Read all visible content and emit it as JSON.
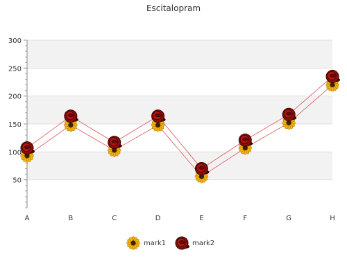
{
  "chart_data": {
    "type": "line",
    "title": "Escitalopram",
    "categories": [
      "A",
      "B",
      "C",
      "D",
      "E",
      "F",
      "G",
      "H"
    ],
    "y_ticks": [
      50,
      100,
      150,
      200,
      250,
      300
    ],
    "ylim": [
      0,
      300
    ],
    "grid": true,
    "legend_position": "bottom",
    "series": [
      {
        "name": "mark1",
        "values": [
          93,
          148,
          103,
          148,
          56,
          107,
          152,
          220
        ],
        "color": "#e8a317",
        "marker": "sunflower-icon"
      },
      {
        "name": "mark2",
        "values": [
          107,
          164,
          117,
          164,
          70,
          121,
          167,
          235
        ],
        "color": "#b5170e",
        "marker": "rose-icon"
      }
    ]
  }
}
